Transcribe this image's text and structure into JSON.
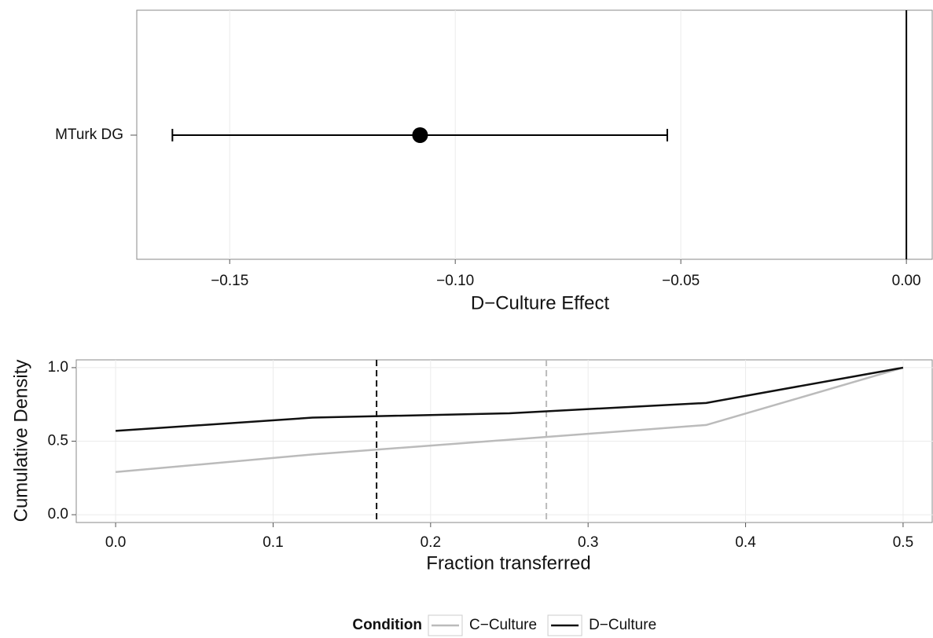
{
  "chart_data": [
    {
      "type": "errorbar",
      "xlabel": "D−Culture Effect",
      "categories": [
        "MTurk DG"
      ],
      "values": [
        -0.1078
      ],
      "lower": [
        -0.1627
      ],
      "upper": [
        -0.053
      ],
      "color": "#000000",
      "ref_line": 0,
      "xlim": [
        -0.1706,
        0.0059
      ],
      "xticks": [
        {
          "value": -0.15,
          "label": "−0.15"
        },
        {
          "value": -0.1,
          "label": "−0.10"
        },
        {
          "value": -0.05,
          "label": "−0.05"
        },
        {
          "value": 0,
          "label": "0.00"
        }
      ],
      "grid": true
    },
    {
      "type": "line",
      "xlabel": "Fraction transferred",
      "ylabel": "Cumulative Density",
      "x": [
        0,
        0.125,
        0.25,
        0.375,
        0.5
      ],
      "series": [
        {
          "name": "C−Culture",
          "color": "#bbbbbb",
          "values": [
            0.29,
            0.41,
            0.51,
            0.61,
            1.0
          ],
          "mean": 0.2735
        },
        {
          "name": "D−Culture",
          "color": "#111111",
          "values": [
            0.57,
            0.66,
            0.69,
            0.76,
            1.0
          ],
          "mean": 0.1657
        }
      ],
      "mean_line_style": "dashed",
      "xlim": [
        -0.025,
        0.519
      ],
      "ylim": [
        -0.053,
        1.053
      ],
      "xticks": [
        {
          "value": 0,
          "label": "0.0"
        },
        0.1,
        0.2,
        0.3,
        0.4,
        {
          "value": 0.5,
          "label": "0.5"
        }
      ],
      "yticks": [
        {
          "value": 0,
          "label": "0.0"
        },
        {
          "value": 0.5,
          "label": "0.5"
        },
        {
          "value": 1,
          "label": "1.0"
        }
      ],
      "grid": true,
      "legend": "bottom",
      "legend_title": "Condition"
    }
  ]
}
